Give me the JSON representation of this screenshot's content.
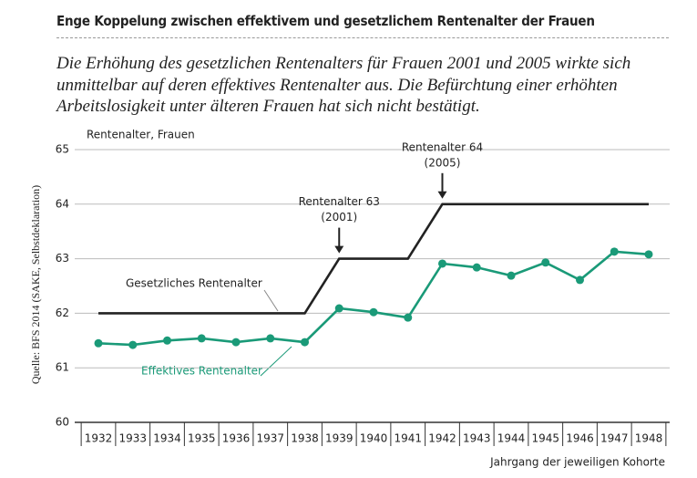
{
  "chart_data": {
    "type": "line",
    "title": "Enge Koppelung zwischen effektivem und gesetzlichem Rentenalter der Frauen",
    "subtitle": "Die Erhöhung des gesetzlichen Rentenalters für Frauen 2001 und 2005 wirkte sich unmittelbar auf deren effektives Rentenalter aus. Die Befürchtung einer erhöhten Arbeitslosigkeit unter älteren Frauen hat sich nicht bestätigt.",
    "y_label": "Rentenalter, Frauen",
    "x_label": "Jahrgang der jeweiligen Kohorte",
    "source": "Quelle: BFS 2014 (SAKE, Selbstdeklaration)",
    "categories": [
      "1932",
      "1933",
      "1934",
      "1935",
      "1936",
      "1937",
      "1938",
      "1939",
      "1940",
      "1941",
      "1942",
      "1943",
      "1944",
      "1945",
      "1946",
      "1947",
      "1948"
    ],
    "series": [
      {
        "name": "Gesetzliches Rentenalter",
        "color": "#222222",
        "markers": false,
        "values": [
          62,
          62,
          62,
          62,
          62,
          62,
          62,
          63,
          63,
          63,
          64,
          64,
          64,
          64,
          64,
          64,
          64
        ]
      },
      {
        "name": "Effektives Rentenalter",
        "color": "#1a9a78",
        "markers": true,
        "values": [
          61.45,
          61.42,
          61.5,
          61.54,
          61.47,
          61.54,
          61.47,
          62.09,
          62.02,
          61.92,
          62.91,
          62.84,
          62.69,
          62.93,
          62.61,
          63.13,
          63.08
        ]
      }
    ],
    "annotations": [
      {
        "label": "Rentenalter 63",
        "sublabel": "(2001)"
      },
      {
        "label": "Rentenalter 64",
        "sublabel": "(2005)"
      }
    ],
    "ylim": [
      60,
      65
    ],
    "yticks": [
      60,
      61,
      62,
      63,
      64,
      65
    ],
    "grid": true
  }
}
